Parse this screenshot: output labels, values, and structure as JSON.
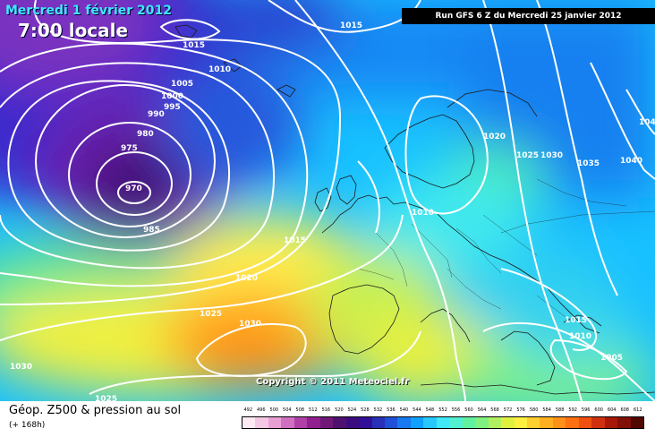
{
  "header": {
    "date": "Mercredi 1 février 2012",
    "local_time": "7:00 locale",
    "run_info": "Run GFS 6 Z du Mercredi 25 janvier 2012"
  },
  "map": {
    "copyright": "Copyright © 2011 Meteociel.fr",
    "isobar_labels": [
      "1015",
      "1010",
      "1005",
      "1000",
      "995",
      "990",
      "980",
      "975",
      "970",
      "985",
      "1015",
      "1020",
      "1025",
      "1030",
      "1030",
      "1025",
      "1015",
      "1020",
      "1025",
      "1030",
      "1035",
      "1040",
      "104",
      "1010",
      "1015",
      "1010",
      "1005"
    ]
  },
  "footer": {
    "title": "Géop. Z500 & pression au sol",
    "forecast_hours": "(+ 168h)",
    "scale_values": [
      "492",
      "496",
      "500",
      "504",
      "508",
      "512",
      "516",
      "520",
      "524",
      "528",
      "532",
      "536",
      "540",
      "544",
      "548",
      "552",
      "556",
      "560",
      "564",
      "568",
      "572",
      "576",
      "580",
      "584",
      "588",
      "592",
      "596",
      "600",
      "604",
      "608",
      "612"
    ],
    "scale_colors": [
      "#fdeaf4",
      "#f4c8e4",
      "#e8a0d4",
      "#d070c0",
      "#b040a8",
      "#902090",
      "#701878",
      "#501070",
      "#3a0c80",
      "#301098",
      "#2830b8",
      "#2050d8",
      "#1878f0",
      "#10a0ff",
      "#28c8ff",
      "#40e8f8",
      "#50f0d0",
      "#60f0a0",
      "#80f080",
      "#b0f060",
      "#e0f040",
      "#fff040",
      "#ffd030",
      "#ffb020",
      "#ff9018",
      "#ff7010",
      "#f05010",
      "#d03010",
      "#a81808",
      "#801008",
      "#500800"
    ]
  }
}
